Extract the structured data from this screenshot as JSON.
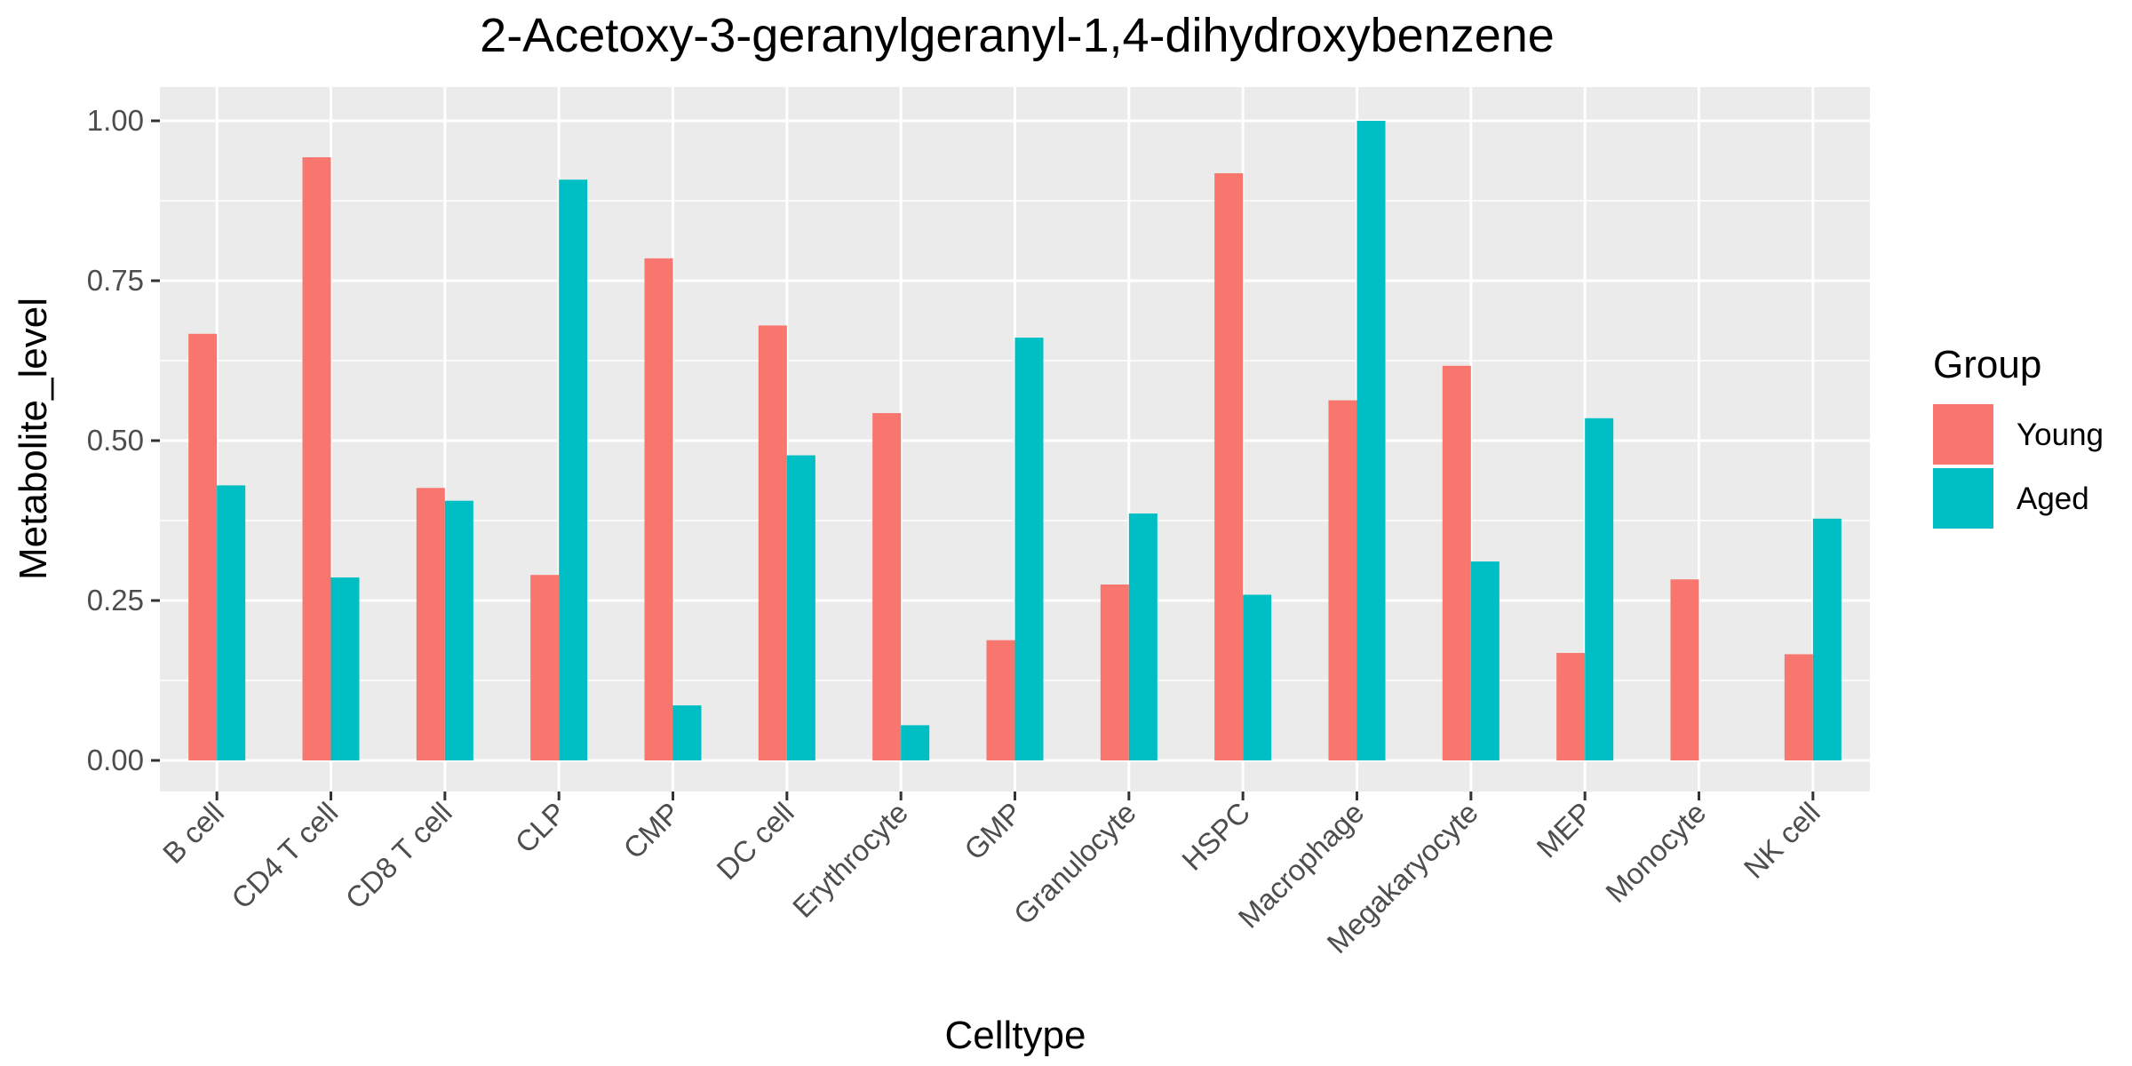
{
  "chart_data": {
    "type": "bar",
    "title": "2-Acetoxy-3-geranylgeranyl-1,4-dihydroxybenzene",
    "xlabel": "Celltype",
    "ylabel": "Metabolite_level",
    "ylim": [
      0,
      1.05
    ],
    "yticks": [
      "0.00",
      "0.25",
      "0.50",
      "0.75",
      "1.00"
    ],
    "ytick_values": [
      0,
      0.25,
      0.5,
      0.75,
      1.0
    ],
    "grid": true,
    "legend_position": "right",
    "legend_title": "Group",
    "categories": [
      "B cell",
      "CD4 T cell",
      "CD8 T cell",
      "CLP",
      "CMP",
      "DC cell",
      "Erythrocyte",
      "GMP",
      "Granulocyte",
      "HSPC",
      "Macrophage",
      "Megakaryocyte",
      "MEP",
      "Monocyte",
      "NK cell"
    ],
    "series": [
      {
        "name": "Young",
        "color": "#F8766D",
        "values": [
          0.667,
          0.943,
          0.426,
          0.29,
          0.785,
          0.68,
          0.543,
          0.188,
          0.275,
          0.918,
          0.563,
          0.617,
          0.168,
          0.283,
          0.166
        ]
      },
      {
        "name": "Aged",
        "color": "#00BFC4",
        "values": [
          0.43,
          0.286,
          0.406,
          0.908,
          0.086,
          0.477,
          0.055,
          0.661,
          0.386,
          0.259,
          1.0,
          0.311,
          0.535,
          0.0,
          0.378
        ]
      }
    ]
  }
}
